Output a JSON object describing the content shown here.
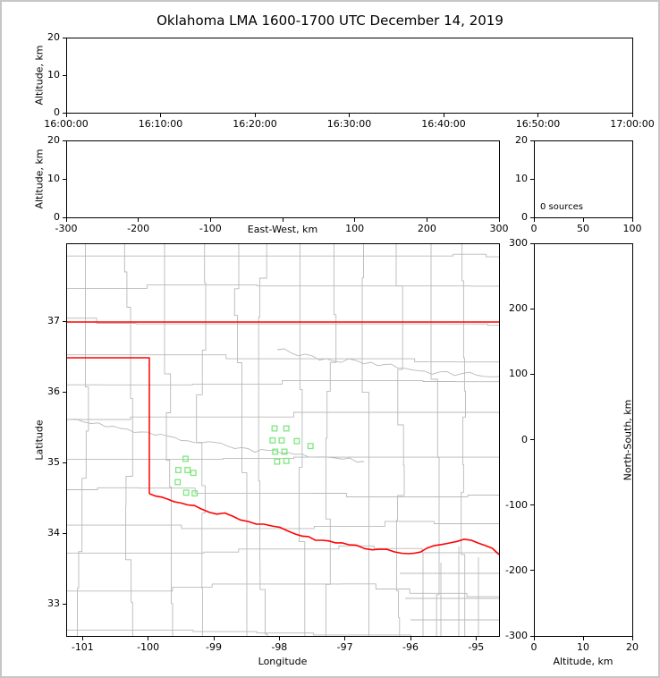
{
  "title": "Oklahoma LMA 1600-1700 UTC December 14, 2019",
  "colors": {
    "state_border": "#ff0000",
    "red_river": "#ff0000",
    "county_lines": "#b9b9b9",
    "source_marker": "#7ce87c",
    "axis_line": "#000000",
    "figure_frame": "#c6c6c6"
  },
  "chart_data": [
    {
      "id": "altitude_vs_time",
      "type": "scatter",
      "xlabel": "",
      "ylabel": "Altitude, km",
      "xticklabels": [
        "16:00:00",
        "16:10:00",
        "16:20:00",
        "16:30:00",
        "16:40:00",
        "16:50:00",
        "17:00:00"
      ],
      "yticklabels": [
        "0",
        "10",
        "20"
      ],
      "ylim": [
        0,
        20
      ],
      "points": []
    },
    {
      "id": "altitude_vs_east_west",
      "type": "scatter",
      "xlabel": "East-West, km",
      "ylabel": "Altitude, km",
      "xtick_values": [
        -300,
        -200,
        -100,
        0,
        100,
        200,
        300
      ],
      "xticklabels": [
        "-300",
        "-200",
        "-100",
        "",
        "100",
        "200",
        "300"
      ],
      "yticklabels": [
        "0",
        "10",
        "20"
      ],
      "xlim": [
        -300,
        300
      ],
      "ylim": [
        0,
        20
      ],
      "points": []
    },
    {
      "id": "altitude_vs_source_count",
      "type": "line",
      "annotation": "0 sources",
      "xticklabels": [
        "0",
        "50",
        "100"
      ],
      "yticklabels": [
        "0",
        "10",
        "20"
      ],
      "xlim": [
        0,
        100
      ],
      "ylim": [
        0,
        20
      ],
      "points": []
    },
    {
      "id": "plan_view_map",
      "type": "scatter",
      "xlabel": "Longitude",
      "ylabel": "Latitude",
      "xtick_values": [
        -101,
        -100,
        -99,
        -98,
        -97,
        -96,
        -95
      ],
      "xticklabels": [
        "-101",
        "-100",
        "-99",
        "-98",
        "-97",
        "-96",
        "-95"
      ],
      "ytick_values": [
        33,
        34,
        35,
        36,
        37
      ],
      "yticklabels": [
        "33",
        "34",
        "35",
        "36",
        "37"
      ],
      "xlim": [
        -101.25,
        -94.65
      ],
      "ylim": [
        32.55,
        38.1
      ],
      "marker": "open-square",
      "sources_lon_lat": [
        [
          -98.08,
          35.49
        ],
        [
          -97.9,
          35.49
        ],
        [
          -98.11,
          35.32
        ],
        [
          -97.97,
          35.32
        ],
        [
          -97.74,
          35.31
        ],
        [
          -97.53,
          35.24
        ],
        [
          -98.07,
          35.16
        ],
        [
          -97.93,
          35.16
        ],
        [
          -97.9,
          35.03
        ],
        [
          -98.04,
          35.02
        ],
        [
          -99.44,
          35.06
        ],
        [
          -99.55,
          34.9
        ],
        [
          -99.41,
          34.9
        ],
        [
          -99.32,
          34.86
        ],
        [
          -99.56,
          34.73
        ],
        [
          -99.43,
          34.58
        ],
        [
          -99.3,
          34.57
        ]
      ]
    },
    {
      "id": "north_south_vs_altitude",
      "type": "scatter",
      "xlabel": "Altitude, km",
      "ylabel_right": "North-South, km",
      "xticklabels": [
        "0",
        "10",
        "20"
      ],
      "ytick_values": [
        300,
        200,
        100,
        0,
        -100,
        -200,
        -300
      ],
      "yticklabels": [
        "300",
        "200",
        "100",
        "0",
        "-100",
        "-200",
        "-300"
      ],
      "xlim": [
        0,
        20
      ],
      "ylim": [
        -300,
        300
      ],
      "points": []
    }
  ]
}
